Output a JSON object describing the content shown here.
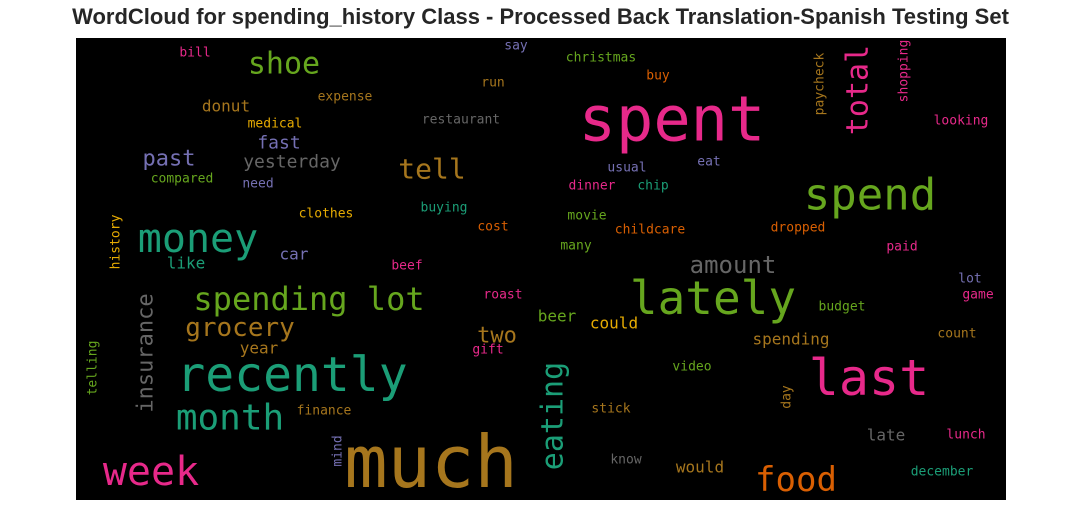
{
  "chart_data": {
    "type": "wordcloud",
    "title": "WordCloud for spending_history Class - Processed Back Translation-Spanish Testing Set",
    "background": "#000000",
    "palette": [
      "#e7298a",
      "#1b9e77",
      "#66a61e",
      "#a6761d",
      "#d95f02",
      "#e6ab02",
      "#7570b3",
      "#666666"
    ],
    "words": [
      {
        "text": "much",
        "color": "#a6761d",
        "vertical": false
      },
      {
        "text": "spent",
        "color": "#e7298a",
        "vertical": false
      },
      {
        "text": "recently",
        "color": "#1b9e77",
        "vertical": false
      },
      {
        "text": "lately",
        "color": "#66a61e",
        "vertical": false
      },
      {
        "text": "last",
        "color": "#e7298a",
        "vertical": false
      },
      {
        "text": "spend",
        "color": "#66a61e",
        "vertical": false
      },
      {
        "text": "money",
        "color": "#1b9e77",
        "vertical": false
      },
      {
        "text": "week",
        "color": "#e7298a",
        "vertical": false
      },
      {
        "text": "month",
        "color": "#1b9e77",
        "vertical": false
      },
      {
        "text": "spending lot",
        "color": "#66a61e",
        "vertical": false
      },
      {
        "text": "food",
        "color": "#d95f02",
        "vertical": false
      },
      {
        "text": "eating",
        "color": "#1b9e77",
        "vertical": true
      },
      {
        "text": "total",
        "color": "#e7298a",
        "vertical": true
      },
      {
        "text": "shoe",
        "color": "#66a61e",
        "vertical": false
      },
      {
        "text": "grocery",
        "color": "#a6761d",
        "vertical": false
      },
      {
        "text": "insurance",
        "color": "#666666",
        "vertical": true
      },
      {
        "text": "tell",
        "color": "#a6761d",
        "vertical": false
      },
      {
        "text": "amount",
        "color": "#666666",
        "vertical": false
      },
      {
        "text": "two",
        "color": "#a6761d",
        "vertical": false
      },
      {
        "text": "past",
        "color": "#7570b3",
        "vertical": false
      },
      {
        "text": "fast",
        "color": "#7570b3",
        "vertical": false
      },
      {
        "text": "yesterday",
        "color": "#666666",
        "vertical": false
      },
      {
        "text": "donut",
        "color": "#a6761d",
        "vertical": false
      },
      {
        "text": "like",
        "color": "#1b9e77",
        "vertical": false
      },
      {
        "text": "car",
        "color": "#7570b3",
        "vertical": false
      },
      {
        "text": "year",
        "color": "#a6761d",
        "vertical": false
      },
      {
        "text": "could",
        "color": "#e6ab02",
        "vertical": false
      },
      {
        "text": "beer",
        "color": "#66a61e",
        "vertical": false
      },
      {
        "text": "spending",
        "color": "#a6761d",
        "vertical": false
      },
      {
        "text": "would",
        "color": "#a6761d",
        "vertical": false
      },
      {
        "text": "late",
        "color": "#666666",
        "vertical": false
      },
      {
        "text": "bill",
        "color": "#e7298a",
        "vertical": false
      },
      {
        "text": "medical",
        "color": "#e6ab02",
        "vertical": false
      },
      {
        "text": "expense",
        "color": "#a6761d",
        "vertical": false
      },
      {
        "text": "restaurant",
        "color": "#666666",
        "vertical": false
      },
      {
        "text": "say",
        "color": "#7570b3",
        "vertical": false
      },
      {
        "text": "run",
        "color": "#a6761d",
        "vertical": false
      },
      {
        "text": "christmas",
        "color": "#66a61e",
        "vertical": false
      },
      {
        "text": "buy",
        "color": "#d95f02",
        "vertical": false
      },
      {
        "text": "paycheck",
        "color": "#a6761d",
        "vertical": true
      },
      {
        "text": "shopping",
        "color": "#e7298a",
        "vertical": true
      },
      {
        "text": "looking",
        "color": "#e7298a",
        "vertical": false
      },
      {
        "text": "compared",
        "color": "#66a61e",
        "vertical": false
      },
      {
        "text": "need",
        "color": "#7570b3",
        "vertical": false
      },
      {
        "text": "usual",
        "color": "#7570b3",
        "vertical": false
      },
      {
        "text": "eat",
        "color": "#7570b3",
        "vertical": false
      },
      {
        "text": "dinner",
        "color": "#e7298a",
        "vertical": false
      },
      {
        "text": "chip",
        "color": "#1b9e77",
        "vertical": false
      },
      {
        "text": "history",
        "color": "#e6ab02",
        "vertical": true
      },
      {
        "text": "clothes",
        "color": "#e6ab02",
        "vertical": false
      },
      {
        "text": "buying",
        "color": "#1b9e77",
        "vertical": false
      },
      {
        "text": "cost",
        "color": "#d95f02",
        "vertical": false
      },
      {
        "text": "movie",
        "color": "#66a61e",
        "vertical": false
      },
      {
        "text": "childcare",
        "color": "#d95f02",
        "vertical": false
      },
      {
        "text": "dropped",
        "color": "#d95f02",
        "vertical": false
      },
      {
        "text": "many",
        "color": "#66a61e",
        "vertical": false
      },
      {
        "text": "paid",
        "color": "#e7298a",
        "vertical": false
      },
      {
        "text": "beef",
        "color": "#e7298a",
        "vertical": false
      },
      {
        "text": "lot",
        "color": "#7570b3",
        "vertical": false
      },
      {
        "text": "game",
        "color": "#e7298a",
        "vertical": false
      },
      {
        "text": "roast",
        "color": "#e7298a",
        "vertical": false
      },
      {
        "text": "budget",
        "color": "#66a61e",
        "vertical": false
      },
      {
        "text": "count",
        "color": "#a6761d",
        "vertical": false
      },
      {
        "text": "gift",
        "color": "#e7298a",
        "vertical": false
      },
      {
        "text": "telling",
        "color": "#66a61e",
        "vertical": true
      },
      {
        "text": "video",
        "color": "#66a61e",
        "vertical": false
      },
      {
        "text": "day",
        "color": "#a6761d",
        "vertical": true
      },
      {
        "text": "finance",
        "color": "#a6761d",
        "vertical": false
      },
      {
        "text": "stick",
        "color": "#a6761d",
        "vertical": false
      },
      {
        "text": "lunch",
        "color": "#e7298a",
        "vertical": false
      },
      {
        "text": "mind",
        "color": "#7570b3",
        "vertical": true
      },
      {
        "text": "know",
        "color": "#666666",
        "vertical": false
      },
      {
        "text": "december",
        "color": "#1b9e77",
        "vertical": false
      }
    ]
  }
}
